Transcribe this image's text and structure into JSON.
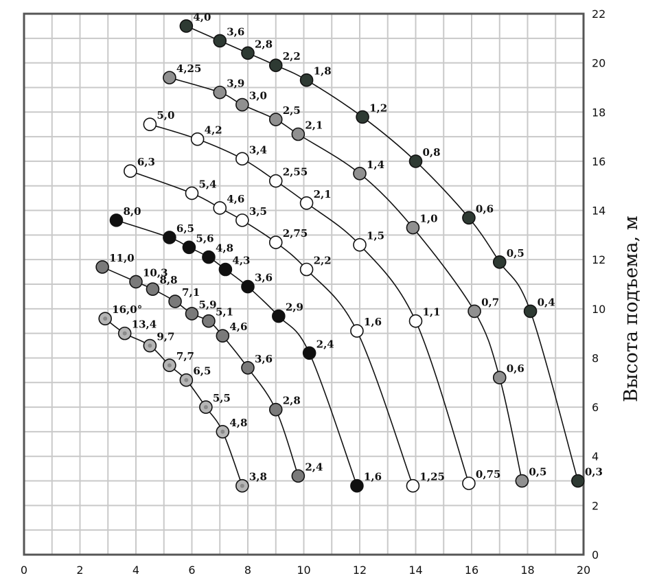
{
  "chart_data": {
    "type": "scatter",
    "title": "",
    "xlabel": "",
    "ylabel": "Высота подъема, м",
    "xlim": [
      0,
      20
    ],
    "ylim": [
      0,
      22
    ],
    "x_ticks": [
      "0",
      "2",
      "4",
      "6",
      "8",
      "10",
      "12",
      "14",
      "16",
      "18",
      "20"
    ],
    "y_ticks": [
      "0",
      "2",
      "4",
      "6",
      "8",
      "10",
      "12",
      "14",
      "16",
      "18",
      "20",
      "22"
    ],
    "grid": true,
    "series": [
      {
        "color": "#2e3a33",
        "points": [
          {
            "x": 5.8,
            "y": 21.5,
            "label": "4,0"
          },
          {
            "x": 7.0,
            "y": 20.9,
            "label": "3,6"
          },
          {
            "x": 8.0,
            "y": 20.4,
            "label": "2,8"
          },
          {
            "x": 9.0,
            "y": 19.9,
            "label": "2,2"
          },
          {
            "x": 10.1,
            "y": 19.3,
            "label": "1,8"
          },
          {
            "x": 12.1,
            "y": 17.8,
            "label": "1,2"
          },
          {
            "x": 14.0,
            "y": 16.0,
            "label": "0,8"
          },
          {
            "x": 15.9,
            "y": 13.7,
            "label": "0,6"
          },
          {
            "x": 17.0,
            "y": 11.9,
            "label": "0,5"
          },
          {
            "x": 18.1,
            "y": 9.9,
            "label": "0,4"
          },
          {
            "x": 19.8,
            "y": 3.0,
            "label": "0,3"
          }
        ]
      },
      {
        "color": "#909090",
        "points": [
          {
            "x": 5.2,
            "y": 19.4,
            "label": "4,25"
          },
          {
            "x": 7.0,
            "y": 18.8,
            "label": "3,9"
          },
          {
            "x": 7.8,
            "y": 18.3,
            "label": "3,0"
          },
          {
            "x": 9.0,
            "y": 17.7,
            "label": "2,5"
          },
          {
            "x": 9.8,
            "y": 17.1,
            "label": "2,1"
          },
          {
            "x": 12.0,
            "y": 15.5,
            "label": "1,4"
          },
          {
            "x": 13.9,
            "y": 13.3,
            "label": "1,0"
          },
          {
            "x": 16.1,
            "y": 9.9,
            "label": "0,7"
          },
          {
            "x": 17.0,
            "y": 7.2,
            "label": "0,6"
          },
          {
            "x": 17.8,
            "y": 3.0,
            "label": "0,5"
          }
        ]
      },
      {
        "color": "#ffffff",
        "points": [
          {
            "x": 4.5,
            "y": 17.5,
            "label": "5,0"
          },
          {
            "x": 6.2,
            "y": 16.9,
            "label": "4,2"
          },
          {
            "x": 7.8,
            "y": 16.1,
            "label": "3,4"
          },
          {
            "x": 9.0,
            "y": 15.2,
            "label": "2,55"
          },
          {
            "x": 10.1,
            "y": 14.3,
            "label": "2,1"
          },
          {
            "x": 12.0,
            "y": 12.6,
            "label": "1,5"
          },
          {
            "x": 14.0,
            "y": 9.5,
            "label": "1,1"
          },
          {
            "x": 15.9,
            "y": 2.9,
            "label": "0,75"
          }
        ]
      },
      {
        "color": "#ffffff",
        "points": [
          {
            "x": 3.8,
            "y": 15.6,
            "label": "6,3"
          },
          {
            "x": 6.0,
            "y": 14.7,
            "label": "5,4"
          },
          {
            "x": 7.0,
            "y": 14.1,
            "label": "4,6"
          },
          {
            "x": 7.8,
            "y": 13.6,
            "label": "3,5"
          },
          {
            "x": 9.0,
            "y": 12.7,
            "label": "2,75"
          },
          {
            "x": 10.1,
            "y": 11.6,
            "label": "2,2"
          },
          {
            "x": 11.9,
            "y": 9.1,
            "label": "1,6"
          },
          {
            "x": 13.9,
            "y": 2.8,
            "label": "1,25"
          }
        ]
      },
      {
        "color": "#101010",
        "points": [
          {
            "x": 3.3,
            "y": 13.6,
            "label": "8,0"
          },
          {
            "x": 5.2,
            "y": 12.9,
            "label": "6,5"
          },
          {
            "x": 5.9,
            "y": 12.5,
            "label": "5,6"
          },
          {
            "x": 6.6,
            "y": 12.1,
            "label": "4,8"
          },
          {
            "x": 7.2,
            "y": 11.6,
            "label": "4,3"
          },
          {
            "x": 8.0,
            "y": 10.9,
            "label": "3,6"
          },
          {
            "x": 9.1,
            "y": 9.7,
            "label": "2,9"
          },
          {
            "x": 10.2,
            "y": 8.2,
            "label": "2,4"
          },
          {
            "x": 11.9,
            "y": 2.8,
            "label": "1,6"
          }
        ]
      },
      {
        "color": "#7a7a7a",
        "points": [
          {
            "x": 2.8,
            "y": 11.7,
            "label": "11,0"
          },
          {
            "x": 4.0,
            "y": 11.1,
            "label": "10,3"
          },
          {
            "x": 4.6,
            "y": 10.8,
            "label": "8,8"
          },
          {
            "x": 5.4,
            "y": 10.3,
            "label": "7,1"
          },
          {
            "x": 6.0,
            "y": 9.8,
            "label": "5,9"
          },
          {
            "x": 6.6,
            "y": 9.5,
            "label": "5,1"
          },
          {
            "x": 7.1,
            "y": 8.9,
            "label": "4,6"
          },
          {
            "x": 8.0,
            "y": 7.6,
            "label": "3,6"
          },
          {
            "x": 9.0,
            "y": 5.9,
            "label": "2,8"
          },
          {
            "x": 9.8,
            "y": 3.2,
            "label": "2,4"
          }
        ]
      },
      {
        "color": "#b5b5b5",
        "points": [
          {
            "x": 2.9,
            "y": 9.6,
            "label": "16,0°"
          },
          {
            "x": 3.6,
            "y": 9.0,
            "label": "13,4"
          },
          {
            "x": 4.5,
            "y": 8.5,
            "label": "9,7"
          },
          {
            "x": 5.2,
            "y": 7.7,
            "label": "7,7"
          },
          {
            "x": 5.8,
            "y": 7.1,
            "label": "6,5"
          },
          {
            "x": 6.5,
            "y": 6.0,
            "label": "5,5"
          },
          {
            "x": 7.1,
            "y": 5.0,
            "label": "4,8"
          },
          {
            "x": 7.8,
            "y": 2.8,
            "label": "3,8"
          }
        ]
      }
    ]
  }
}
